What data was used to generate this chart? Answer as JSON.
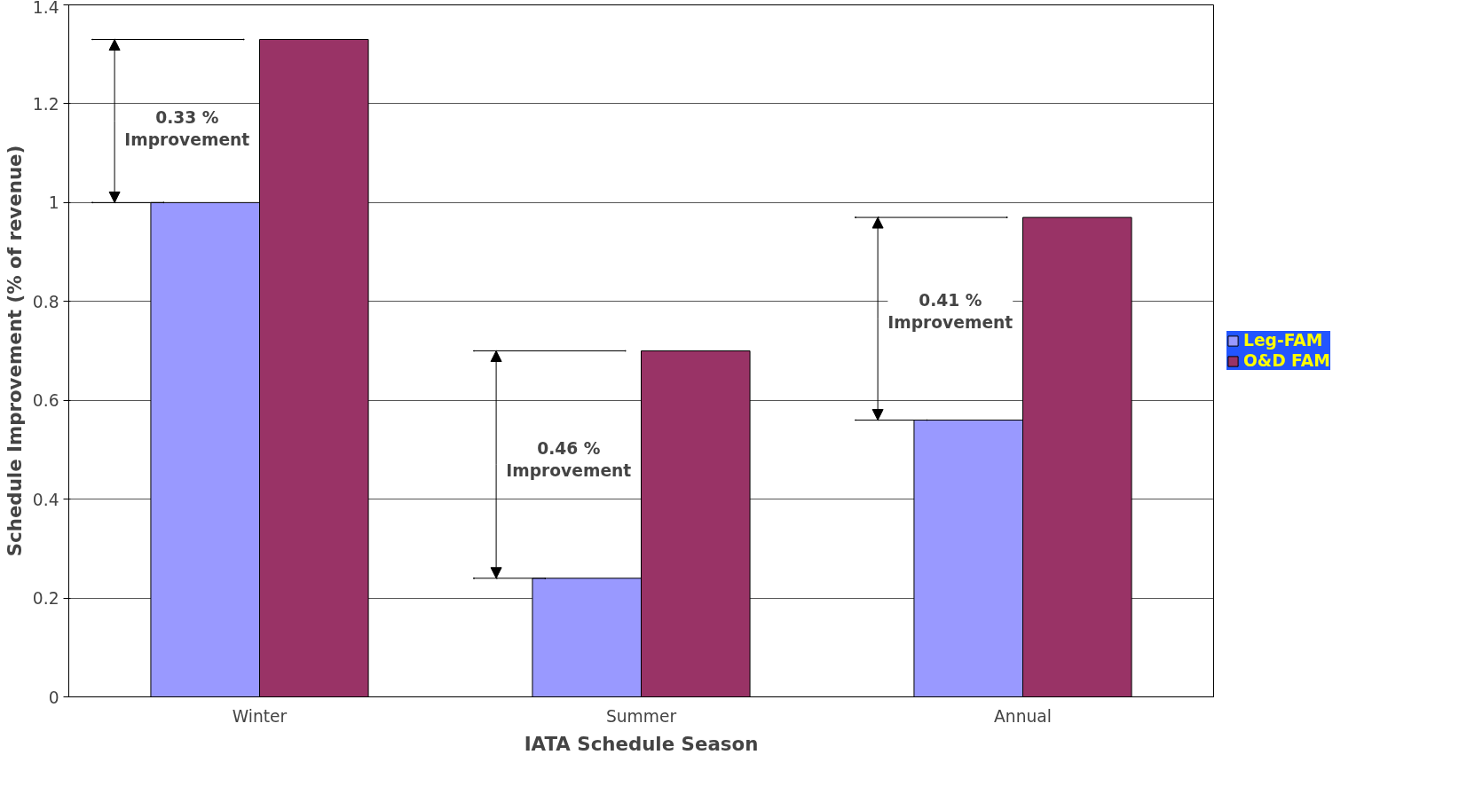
{
  "chart_data": {
    "type": "bar",
    "xlabel": "IATA Schedule Season",
    "ylabel": "Schedule Improvement (% of revenue)",
    "categories": [
      "Winter",
      "Summer",
      "Annual"
    ],
    "series": [
      {
        "name": "Leg-FAM",
        "color": "#9999ff",
        "values": [
          1.0,
          0.24,
          0.56
        ]
      },
      {
        "name": "O&D FAM",
        "color": "#993366",
        "values": [
          1.33,
          0.7,
          0.97
        ]
      }
    ],
    "ylim": [
      0,
      1.4
    ],
    "yticks": [
      0,
      0.2,
      0.4,
      0.6,
      0.8,
      1,
      1.2,
      1.4
    ],
    "grid": "y",
    "legend": "right",
    "annotations": [
      {
        "text": "0.33 %\nImprovement",
        "x": "Winter",
        "y": 1.15
      },
      {
        "text": "0.46 %\nImprovement",
        "x": "Summer",
        "y": 0.48
      },
      {
        "text": "0.41 %\nImprovement",
        "x": "Annual",
        "y": 0.78
      }
    ]
  }
}
